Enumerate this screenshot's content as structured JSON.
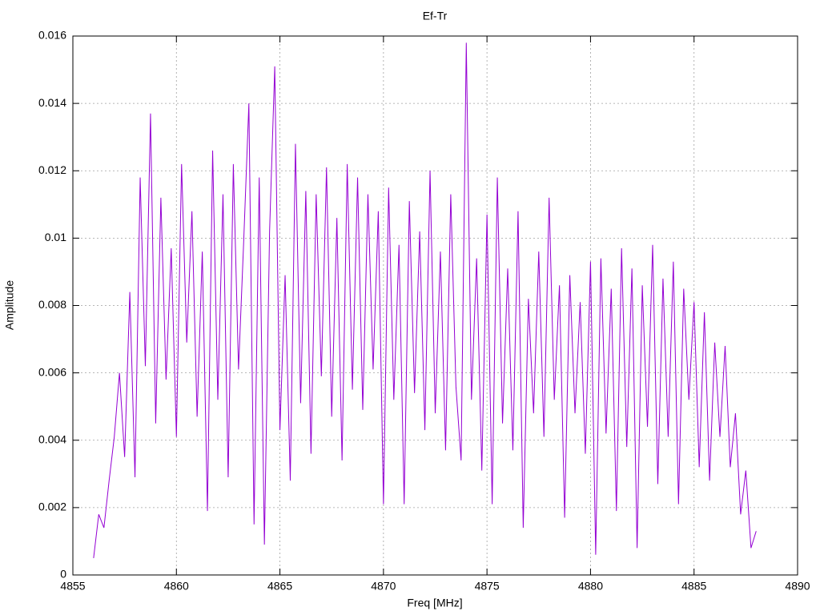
{
  "chart_data": {
    "type": "line",
    "title": "Ef-Tr",
    "x_label": "Freq [MHz]",
    "y_label": "Amplitude",
    "x": [
      4856,
      4856.25,
      4856.5,
      4856.75,
      4857,
      4857.25,
      4857.5,
      4857.75,
      4858,
      4858.25,
      4858.5,
      4858.75,
      4859,
      4859.25,
      4859.5,
      4859.75,
      4860,
      4860.25,
      4860.5,
      4860.75,
      4861,
      4861.25,
      4861.5,
      4861.75,
      4862,
      4862.25,
      4862.5,
      4862.75,
      4863,
      4863.25,
      4863.5,
      4863.75,
      4864,
      4864.25,
      4864.5,
      4864.75,
      4865,
      4865.25,
      4865.5,
      4865.75,
      4866,
      4866.25,
      4866.5,
      4866.75,
      4867,
      4867.25,
      4867.5,
      4867.75,
      4868,
      4868.25,
      4868.5,
      4868.75,
      4869,
      4869.25,
      4869.5,
      4869.75,
      4870,
      4870.25,
      4870.5,
      4870.75,
      4871,
      4871.25,
      4871.5,
      4871.75,
      4872,
      4872.25,
      4872.5,
      4872.75,
      4873,
      4873.25,
      4873.5,
      4873.75,
      4874,
      4874.25,
      4874.5,
      4874.75,
      4875,
      4875.25,
      4875.5,
      4875.75,
      4876,
      4876.25,
      4876.5,
      4876.75,
      4877,
      4877.25,
      4877.5,
      4877.75,
      4878,
      4878.25,
      4878.5,
      4878.75,
      4879,
      4879.25,
      4879.5,
      4879.75,
      4880,
      4880.25,
      4880.5,
      4880.75,
      4881,
      4881.25,
      4881.5,
      4881.75,
      4882,
      4882.25,
      4882.5,
      4882.75,
      4883,
      4883.25,
      4883.5,
      4883.75,
      4884,
      4884.25,
      4884.5,
      4884.75,
      4885,
      4885.25,
      4885.5,
      4885.75,
      4886,
      4886.25,
      4886.5,
      4886.75,
      4887,
      4887.25,
      4887.5,
      4887.75,
      4888
    ],
    "series": [
      {
        "color": "#9400d3",
        "values": [
          0.0005,
          0.0018,
          0.0014,
          0.0028,
          0.0041,
          0.006,
          0.0035,
          0.0084,
          0.0029,
          0.0118,
          0.0062,
          0.0137,
          0.0045,
          0.0112,
          0.0058,
          0.0097,
          0.0041,
          0.0122,
          0.0069,
          0.0108,
          0.0047,
          0.0096,
          0.0019,
          0.0126,
          0.0052,
          0.0113,
          0.0029,
          0.0122,
          0.0061,
          0.0099,
          0.014,
          0.0015,
          0.0118,
          0.0009,
          0.0102,
          0.0151,
          0.0043,
          0.0089,
          0.0028,
          0.0128,
          0.0051,
          0.0114,
          0.0036,
          0.0113,
          0.0059,
          0.0121,
          0.0047,
          0.0106,
          0.0034,
          0.0122,
          0.0055,
          0.0118,
          0.0049,
          0.0113,
          0.0061,
          0.0108,
          0.0021,
          0.0115,
          0.0052,
          0.0098,
          0.0021,
          0.0111,
          0.0054,
          0.0102,
          0.0043,
          0.012,
          0.0048,
          0.0096,
          0.0037,
          0.0113,
          0.0056,
          0.0034,
          0.0158,
          0.0052,
          0.0094,
          0.0031,
          0.0107,
          0.0021,
          0.0118,
          0.0045,
          0.0091,
          0.0037,
          0.0108,
          0.0014,
          0.0082,
          0.0048,
          0.0096,
          0.0041,
          0.0112,
          0.0052,
          0.0086,
          0.0017,
          0.0089,
          0.0048,
          0.0081,
          0.0036,
          0.0093,
          0.0006,
          0.0094,
          0.0042,
          0.0085,
          0.0019,
          0.0097,
          0.0038,
          0.0091,
          0.0008,
          0.0086,
          0.0044,
          0.0098,
          0.0027,
          0.0088,
          0.0041,
          0.0093,
          0.0021,
          0.0085,
          0.0052,
          0.0081,
          0.0032,
          0.0078,
          0.0028,
          0.0069,
          0.0041,
          0.0068,
          0.0032,
          0.0048,
          0.0018,
          0.0031,
          0.0008,
          0.0013
        ]
      }
    ],
    "xlim": [
      4855,
      4890
    ],
    "xticks": [
      4855,
      4860,
      4865,
      4870,
      4875,
      4880,
      4885,
      4890
    ],
    "ylim": [
      0,
      0.016
    ],
    "yticks": [
      0,
      0.002,
      0.004,
      0.006,
      0.008,
      0.01,
      0.012,
      0.014,
      0.016
    ],
    "grid": true
  }
}
